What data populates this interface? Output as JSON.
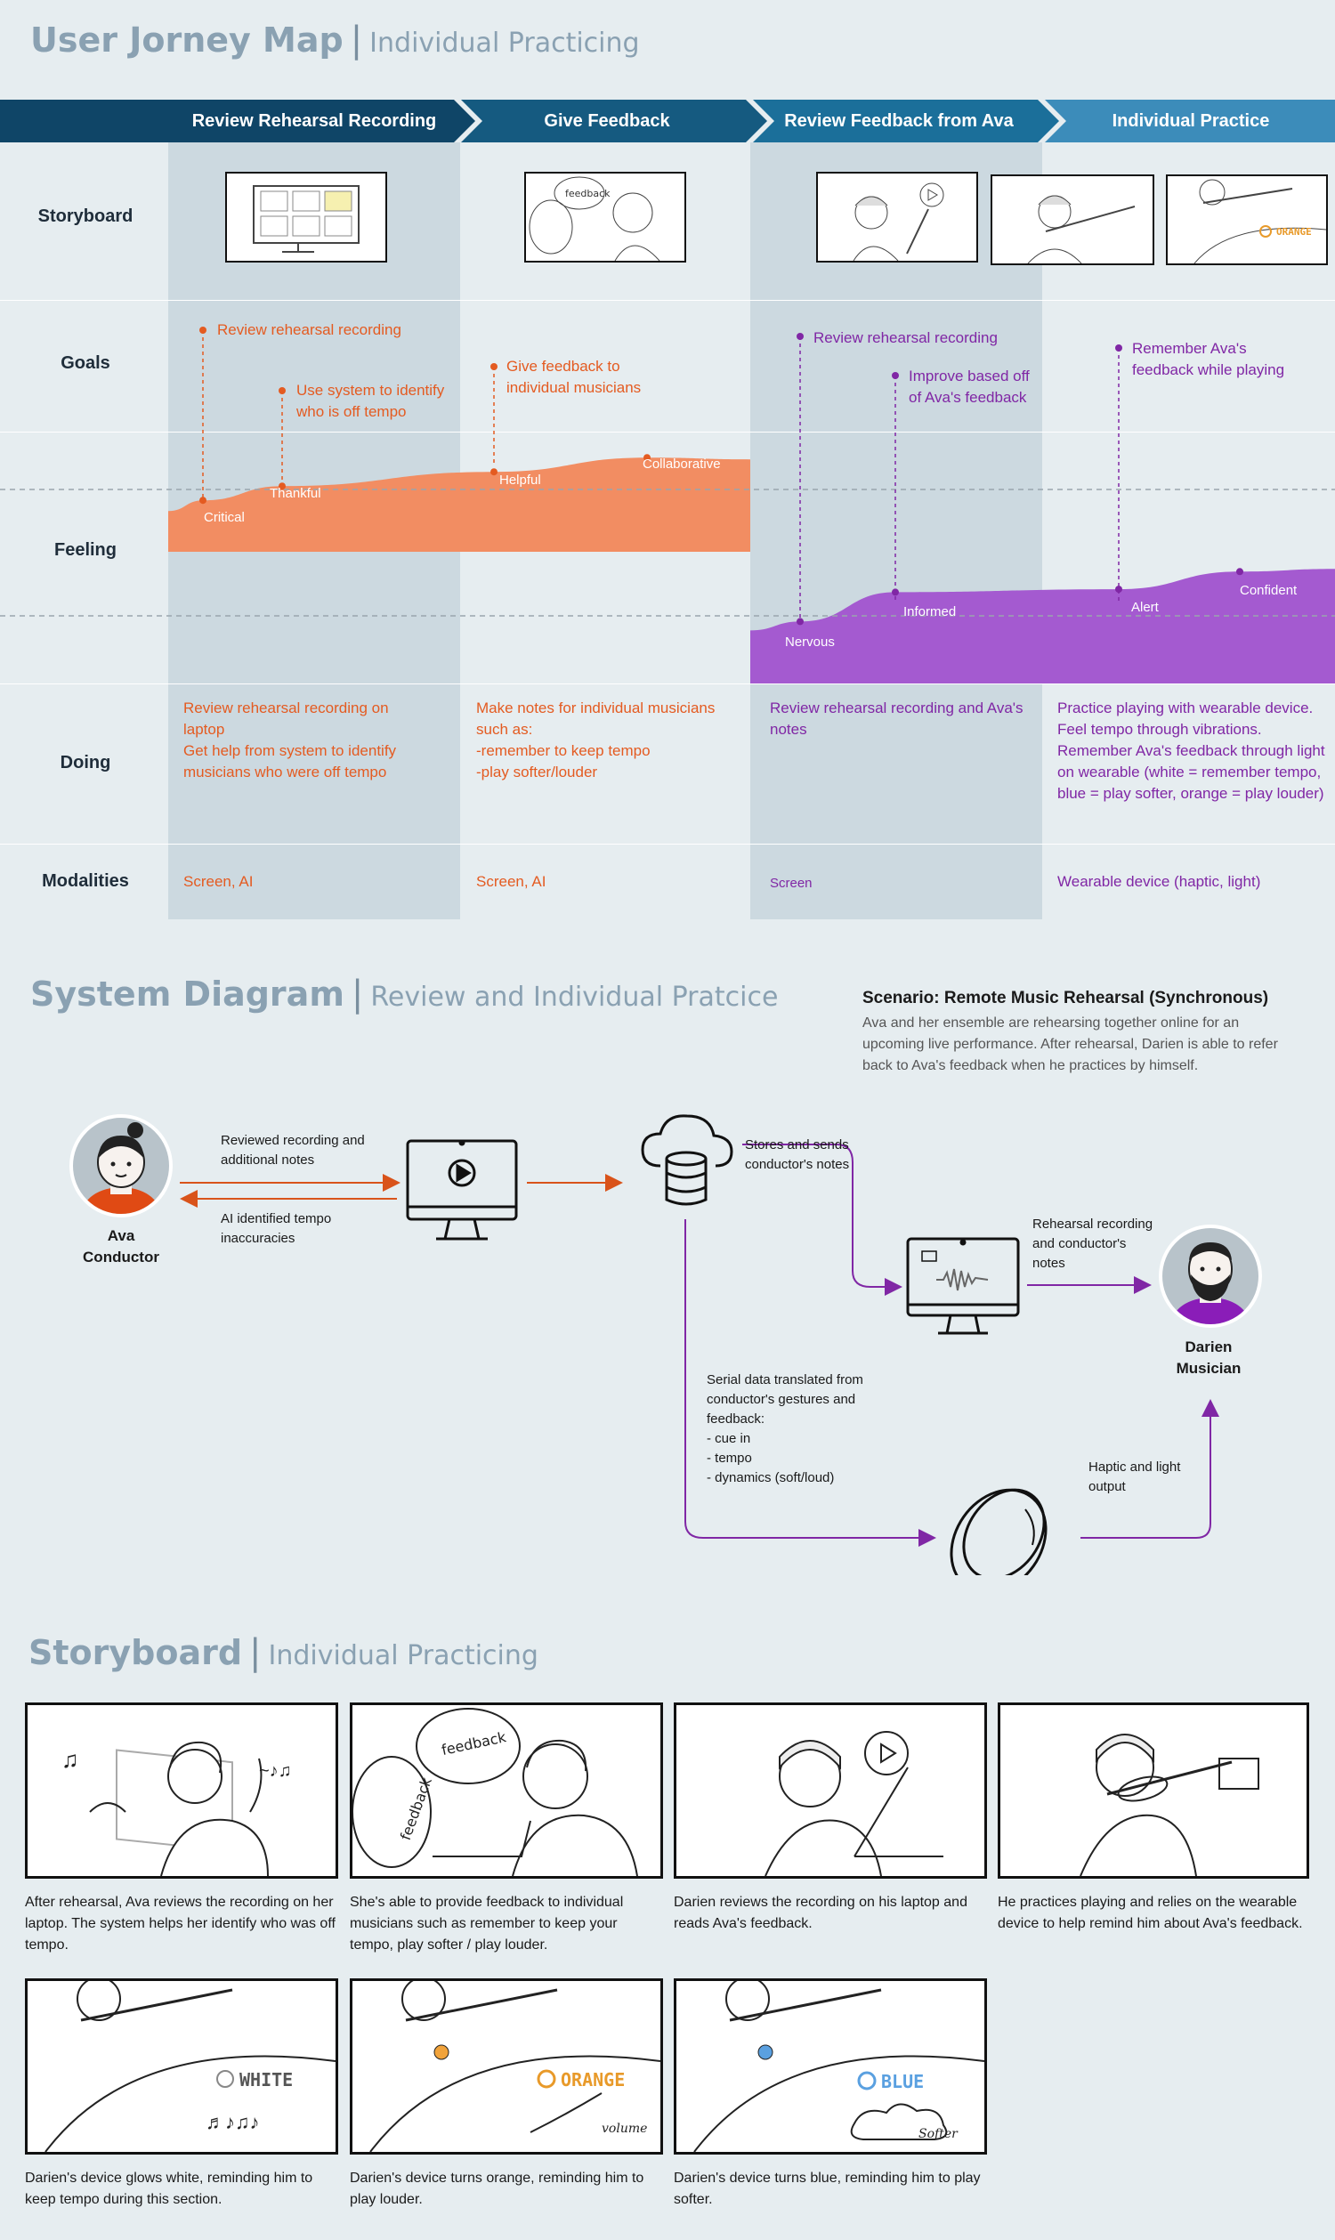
{
  "journey": {
    "title": "User Jorney Map",
    "subtitle": "Individual Practicing",
    "phases": [
      "Review Rehearsal Recording",
      "Give Feedback",
      "Review Feedback from Ava",
      "Individual Practice"
    ],
    "row_labels": [
      "Storyboard",
      "Goals",
      "Feeling",
      "Doing",
      "Modalities"
    ],
    "goals": [
      "Review rehearsal recording",
      "Use system to identify who is off tempo",
      "Give feedback to individual musicians",
      "Review rehearsal recording",
      "Improve based off of Ava's feedback",
      "Remember Ava's feedback while playing"
    ],
    "feelings_ava": [
      "Critical",
      "Thankful",
      "Helpful",
      "Collaborative"
    ],
    "feelings_darien": [
      "Nervous",
      "Informed",
      "Alert",
      "Confident"
    ],
    "feeling_levels_ava": [
      0.2,
      0.45,
      0.7,
      0.95
    ],
    "feeling_levels_darien": [
      0.1,
      0.6,
      0.65,
      0.95
    ],
    "doing": [
      "Review rehearsal recording on laptop\nGet help from system to identify musicians who were off tempo",
      "Make notes for individual musicians such as:\n-remember to keep tempo\n-play softer/louder",
      "Review rehearsal recording and Ava's notes",
      "Practice playing with wearable device. Feel tempo through vibrations. Remember Ava's feedback through light on wearable (white = remember tempo, blue = play softer, orange = play louder)"
    ],
    "modalities": [
      "Screen, AI",
      "Screen, AI",
      "Screen",
      "Wearable device (haptic, light)"
    ],
    "colors": {
      "ava": "#e45b21",
      "ava_fill": "#f28d62",
      "darien": "#8027a5",
      "darien_fill": "#a45ad0"
    }
  },
  "system": {
    "title": "System Diagram",
    "subtitle": "Review and Individual Pratcice",
    "scenario_title": "Scenario: Remote Music Rehearsal (Synchronous)",
    "scenario_body": "Ava and her ensemble are rehearsing together online for an upcoming live performance. After rehearsal, Darien is able to refer back to Ava's feedback when he practices by himself.",
    "ava_name": "Ava",
    "ava_role": "Conductor",
    "darien_name": "Darien",
    "darien_role": "Musician",
    "label_reviewed": "Reviewed recording and additional notes",
    "label_ai": "AI identified tempo inaccuracies",
    "label_stores": "Stores and sends conductor's notes",
    "label_rehearsal": "Rehearsal recording and conductor's notes",
    "label_serial": "Serial data translated from conductor's gestures and feedback:\n- cue in\n- tempo\n- dynamics (soft/loud)",
    "label_haptic": "Haptic and light output"
  },
  "storyboard": {
    "title": "Storyboard",
    "subtitle": "Individual Practicing",
    "captions": [
      "After rehearsal, Ava reviews the recording on her laptop.  The system helps her identify who was off tempo.",
      "She's able to provide feedback to individual musicians such as remember to keep your tempo, play softer / play louder.",
      "Darien reviews the recording on his laptop and reads Ava's feedback.",
      "He practices playing and relies on the wearable device to help remind him about Ava's feedback.",
      "Darien's device glows white, reminding him to keep tempo during this section.",
      "Darien's device turns orange, reminding him to play louder.",
      "Darien's device turns blue, reminding him to play softer."
    ],
    "sketch_words": {
      "feedback": "feedback",
      "white": "WHITE",
      "orange": "ORANGE",
      "blue": "BLUE",
      "volume": "volume",
      "softer": "Softer"
    }
  }
}
